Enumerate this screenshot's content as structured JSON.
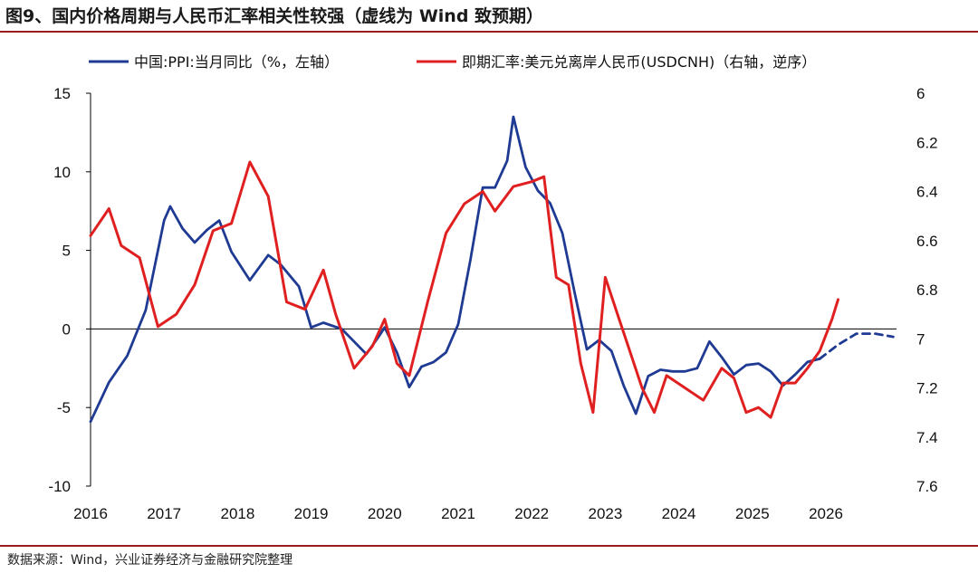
{
  "figure": {
    "title": "图9、国内价格周期与人民币汇率相关性较强（虚线为 Wind 致预期）",
    "source": "数据来源：Wind，兴业证券经济与金融研究院整理"
  },
  "colors": {
    "ppi": "#1f3a93",
    "fx": "#e02020",
    "rule": "#9b1c1c"
  },
  "chart_data": {
    "type": "line",
    "legend_position": "top",
    "x_ticks": [
      "2016",
      "2017",
      "2018",
      "2019",
      "2020",
      "2021",
      "2022",
      "2023",
      "2024",
      "2025",
      "2026"
    ],
    "y_left": {
      "label": "",
      "min": -10,
      "max": 15,
      "ticks": [
        "-10",
        "-5",
        "0",
        "5",
        "10",
        "15"
      ]
    },
    "y_right": {
      "label": "",
      "min": 6.0,
      "max": 7.6,
      "inverted": true,
      "ticks": [
        "6",
        "6.2",
        "6.4",
        "6.6",
        "6.8",
        "7",
        "7.2",
        "7.4",
        "7.6"
      ]
    },
    "series": [
      {
        "name": "中国:PPI:当月同比（%，左轴）",
        "axis": "left",
        "style": "solid",
        "points": [
          [
            "2016-01",
            -5.9
          ],
          [
            "2016-04",
            -3.4
          ],
          [
            "2016-07",
            -1.7
          ],
          [
            "2016-10",
            1.2
          ],
          [
            "2017-01",
            6.9
          ],
          [
            "2017-02",
            7.8
          ],
          [
            "2017-04",
            6.4
          ],
          [
            "2017-06",
            5.5
          ],
          [
            "2017-08",
            6.3
          ],
          [
            "2017-10",
            6.9
          ],
          [
            "2017-12",
            4.9
          ],
          [
            "2018-03",
            3.1
          ],
          [
            "2018-06",
            4.7
          ],
          [
            "2018-08",
            4.1
          ],
          [
            "2018-11",
            2.7
          ],
          [
            "2019-01",
            0.1
          ],
          [
            "2019-03",
            0.4
          ],
          [
            "2019-06",
            0.0
          ],
          [
            "2019-08",
            -0.8
          ],
          [
            "2019-10",
            -1.6
          ],
          [
            "2019-12",
            -0.5
          ],
          [
            "2020-01",
            0.1
          ],
          [
            "2020-03",
            -1.5
          ],
          [
            "2020-05",
            -3.7
          ],
          [
            "2020-07",
            -2.4
          ],
          [
            "2020-09",
            -2.1
          ],
          [
            "2020-11",
            -1.5
          ],
          [
            "2021-01",
            0.3
          ],
          [
            "2021-03",
            4.4
          ],
          [
            "2021-05",
            9.0
          ],
          [
            "2021-07",
            9.0
          ],
          [
            "2021-09",
            10.7
          ],
          [
            "2021-10",
            13.5
          ],
          [
            "2021-12",
            10.3
          ],
          [
            "2022-02",
            8.8
          ],
          [
            "2022-04",
            8.0
          ],
          [
            "2022-06",
            6.1
          ],
          [
            "2022-08",
            2.3
          ],
          [
            "2022-10",
            -1.3
          ],
          [
            "2022-12",
            -0.7
          ],
          [
            "2023-02",
            -1.4
          ],
          [
            "2023-04",
            -3.6
          ],
          [
            "2023-06",
            -5.4
          ],
          [
            "2023-08",
            -3.0
          ],
          [
            "2023-10",
            -2.6
          ],
          [
            "2023-12",
            -2.7
          ],
          [
            "2024-02",
            -2.7
          ],
          [
            "2024-04",
            -2.5
          ],
          [
            "2024-06",
            -0.8
          ],
          [
            "2024-08",
            -1.8
          ],
          [
            "2024-10",
            -2.9
          ],
          [
            "2024-12",
            -2.3
          ],
          [
            "2025-02",
            -2.2
          ],
          [
            "2025-04",
            -2.7
          ],
          [
            "2025-06",
            -3.6
          ],
          [
            "2025-08",
            -2.9
          ],
          [
            "2025-10",
            -2.1
          ],
          [
            "2025-12",
            -1.9
          ]
        ]
      },
      {
        "name": "Wind 一致预期",
        "axis": "left",
        "style": "dashed",
        "points": [
          [
            "2025-12",
            -1.9
          ],
          [
            "2026-03",
            -1.0
          ],
          [
            "2026-06",
            -0.3
          ],
          [
            "2026-09",
            -0.3
          ],
          [
            "2026-12",
            -0.5
          ]
        ]
      },
      {
        "name": "即期汇率:美元兑离岸人民币(USDCNH)（右轴，逆序）",
        "axis": "right",
        "style": "solid",
        "points": [
          [
            "2016-01",
            6.58
          ],
          [
            "2016-04",
            6.47
          ],
          [
            "2016-06",
            6.62
          ],
          [
            "2016-09",
            6.67
          ],
          [
            "2016-12",
            6.95
          ],
          [
            "2017-03",
            6.9
          ],
          [
            "2017-06",
            6.78
          ],
          [
            "2017-09",
            6.56
          ],
          [
            "2017-12",
            6.53
          ],
          [
            "2018-03",
            6.28
          ],
          [
            "2018-06",
            6.42
          ],
          [
            "2018-09",
            6.85
          ],
          [
            "2018-12",
            6.88
          ],
          [
            "2019-03",
            6.72
          ],
          [
            "2019-05",
            6.9
          ],
          [
            "2019-08",
            7.12
          ],
          [
            "2019-11",
            7.03
          ],
          [
            "2020-01",
            6.92
          ],
          [
            "2020-03",
            7.1
          ],
          [
            "2020-05",
            7.15
          ],
          [
            "2020-08",
            6.85
          ],
          [
            "2020-11",
            6.57
          ],
          [
            "2021-02",
            6.45
          ],
          [
            "2021-05",
            6.4
          ],
          [
            "2021-07",
            6.48
          ],
          [
            "2021-10",
            6.38
          ],
          [
            "2022-01",
            6.36
          ],
          [
            "2022-03",
            6.34
          ],
          [
            "2022-05",
            6.75
          ],
          [
            "2022-07",
            6.78
          ],
          [
            "2022-09",
            7.1
          ],
          [
            "2022-11",
            7.3
          ],
          [
            "2023-01",
            6.75
          ],
          [
            "2023-03",
            6.9
          ],
          [
            "2023-05",
            7.05
          ],
          [
            "2023-07",
            7.2
          ],
          [
            "2023-09",
            7.3
          ],
          [
            "2023-11",
            7.15
          ],
          [
            "2024-02",
            7.2
          ],
          [
            "2024-05",
            7.25
          ],
          [
            "2024-08",
            7.12
          ],
          [
            "2024-10",
            7.16
          ],
          [
            "2024-12",
            7.3
          ],
          [
            "2025-02",
            7.28
          ],
          [
            "2025-04",
            7.32
          ],
          [
            "2025-06",
            7.18
          ],
          [
            "2025-08",
            7.18
          ],
          [
            "2025-10",
            7.12
          ],
          [
            "2025-12",
            7.05
          ],
          [
            "2026-02",
            6.92
          ],
          [
            "2026-03",
            6.84
          ]
        ]
      }
    ]
  }
}
